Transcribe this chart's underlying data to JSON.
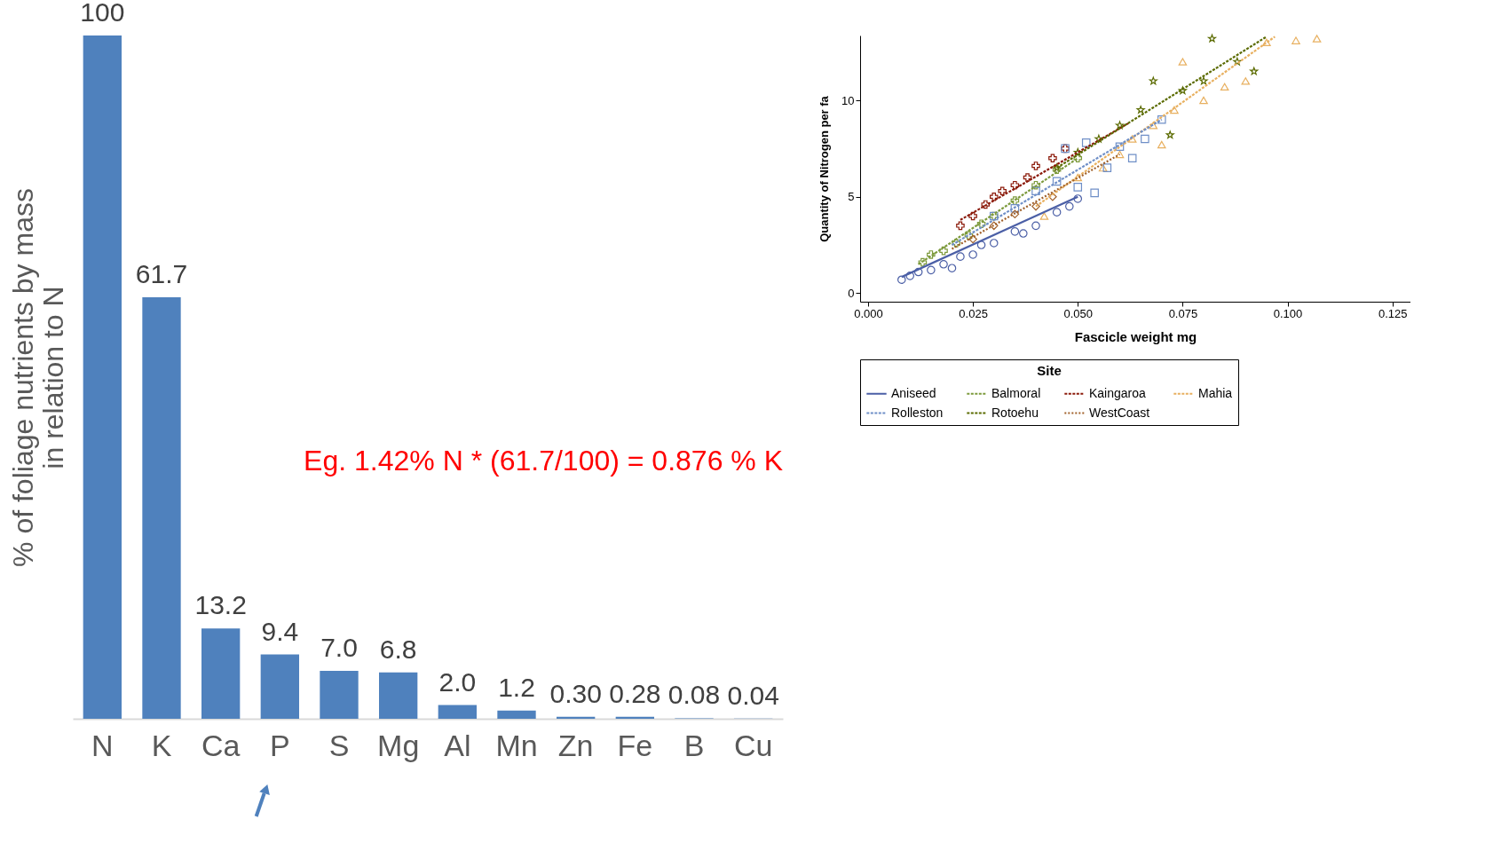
{
  "chart_data": [
    {
      "type": "bar",
      "ylabel": "% of foliage nutrients by mass\nin relation to N",
      "categories": [
        "N",
        "K",
        "Ca",
        "P",
        "S",
        "Mg",
        "Al",
        "Mn",
        "Zn",
        "Fe",
        "B",
        "Cu"
      ],
      "values": [
        100,
        61.7,
        13.2,
        9.4,
        7.0,
        6.8,
        2.0,
        1.2,
        0.3,
        0.28,
        0.08,
        0.04
      ],
      "value_labels": [
        "100",
        "61.7",
        "13.2",
        "9.4",
        "7.0",
        "6.8",
        "2.0",
        "1.2",
        "0.30",
        "0.28",
        "0.08",
        "0.04"
      ],
      "color": "#4f81bd",
      "grid": false,
      "annotations": [
        "Eg. 1.42% N * (61.7/100) = 0.876 % K"
      ]
    },
    {
      "type": "scatter",
      "xlabel": "Fascicle weight mg",
      "ylabel": "Quantity of Nitrogen per fa",
      "legend_title": "Site",
      "legend": "bottom",
      "xlim": [
        -0.0019,
        0.1293
      ],
      "ylim": [
        -0.44,
        13.36
      ],
      "grid": false,
      "xticks": [
        {
          "value": 0,
          "label": "0.000"
        },
        {
          "value": 0.025,
          "label": "0.025"
        },
        {
          "value": 0.05,
          "label": "0.050"
        },
        {
          "value": 0.075,
          "label": "0.075"
        },
        {
          "value": 0.1,
          "label": "0.100"
        },
        {
          "value": 0.125,
          "label": "0.125"
        }
      ],
      "yticks": [
        0,
        5,
        10
      ],
      "series": [
        {
          "color": "#4b5fa6",
          "marker": "circle",
          "x": [
            0.008,
            0.01,
            0.012,
            0.015,
            0.018,
            0.02,
            0.022,
            0.025,
            0.027,
            0.03,
            0.035,
            0.037,
            0.04,
            0.045,
            0.048,
            0.05
          ],
          "values": [
            0.7,
            0.9,
            1.1,
            1.2,
            1.5,
            1.3,
            1.9,
            2.0,
            2.5,
            2.6,
            3.2,
            3.1,
            3.5,
            4.2,
            4.5,
            4.9
          ]
        },
        {
          "color": "#7d9a3c",
          "marker": "cross",
          "x": [
            0.013,
            0.015,
            0.018,
            0.021,
            0.024,
            0.027,
            0.03,
            0.035,
            0.04,
            0.045,
            0.05
          ],
          "values": [
            1.6,
            2.0,
            2.2,
            2.6,
            3.0,
            3.6,
            4.0,
            4.8,
            5.6,
            6.4,
            7.0
          ]
        },
        {
          "color": "#8b1a0a",
          "marker": "cross",
          "x": [
            0.022,
            0.025,
            0.028,
            0.03,
            0.032,
            0.035,
            0.038,
            0.04,
            0.044,
            0.047
          ],
          "values": [
            3.5,
            4.0,
            4.6,
            5.0,
            5.3,
            5.6,
            6.0,
            6.6,
            7.0,
            7.5
          ]
        },
        {
          "color": "#e8b060",
          "marker": "triangle",
          "x": [
            0.042,
            0.05,
            0.056,
            0.06,
            0.063,
            0.068,
            0.07,
            0.073,
            0.075,
            0.08,
            0.085,
            0.09,
            0.095,
            0.102,
            0.107
          ],
          "values": [
            4.0,
            6.0,
            6.5,
            7.2,
            8.0,
            8.7,
            7.7,
            9.5,
            12.0,
            10.0,
            10.7,
            11.0,
            13.0,
            13.1,
            13.2
          ]
        },
        {
          "color": "#6f8fc7",
          "marker": "square",
          "x": [
            0.03,
            0.035,
            0.04,
            0.045,
            0.047,
            0.05,
            0.052,
            0.054,
            0.057,
            0.06,
            0.063,
            0.066,
            0.07
          ],
          "values": [
            4.0,
            4.4,
            5.3,
            5.8,
            7.5,
            5.5,
            7.8,
            5.2,
            6.5,
            7.6,
            7.0,
            8.0,
            9.0
          ]
        },
        {
          "color": "#5b6b00",
          "marker": "star",
          "x": [
            0.045,
            0.05,
            0.055,
            0.06,
            0.065,
            0.068,
            0.072,
            0.075,
            0.08,
            0.082,
            0.088,
            0.092
          ],
          "values": [
            6.5,
            7.3,
            8.0,
            8.7,
            9.5,
            11.0,
            8.2,
            10.5,
            11.0,
            13.2,
            12.0,
            11.5
          ]
        },
        {
          "color": "#a0602a",
          "marker": "diamond",
          "x": [
            0.025,
            0.03,
            0.035,
            0.04,
            0.044
          ],
          "values": [
            2.8,
            3.5,
            4.1,
            4.5,
            5.0
          ]
        },
        {
          "type": "line",
          "name": "Aniseed",
          "color": "#4b5fa6",
          "line_style": "solid",
          "x": [
            0.008,
            0.05
          ],
          "values": [
            0.84,
            5.0
          ]
        },
        {
          "type": "line",
          "name": "Balmoral",
          "color": "#7d9a3c",
          "line_style": "dashed",
          "x": [
            0.012,
            0.05
          ],
          "values": [
            1.5,
            7.0
          ]
        },
        {
          "type": "line",
          "name": "Kaingaroa",
          "color": "#8b1a0a",
          "line_style": "dashed",
          "x": [
            0.022,
            0.062
          ],
          "values": [
            3.8,
            8.8
          ]
        },
        {
          "type": "line",
          "name": "Mahia",
          "color": "#e8b060",
          "line_style": "dashed",
          "x": [
            0.04,
            0.097
          ],
          "values": [
            4.5,
            13.3
          ]
        },
        {
          "type": "line",
          "name": "Rolleston",
          "color": "#6f8fc7",
          "line_style": "dashed",
          "x": [
            0.02,
            0.07
          ],
          "values": [
            2.5,
            9.0
          ]
        },
        {
          "type": "line",
          "name": "Rotoehu",
          "color": "#5b6b00",
          "line_style": "dashed",
          "x": [
            0.045,
            0.095
          ],
          "values": [
            6.5,
            13.3
          ]
        },
        {
          "type": "line",
          "name": "WestCoast",
          "color": "#a0602a",
          "line_style": "dotted",
          "x": [
            0.02,
            0.06
          ],
          "values": [
            2.3,
            7.2
          ]
        }
      ]
    }
  ]
}
